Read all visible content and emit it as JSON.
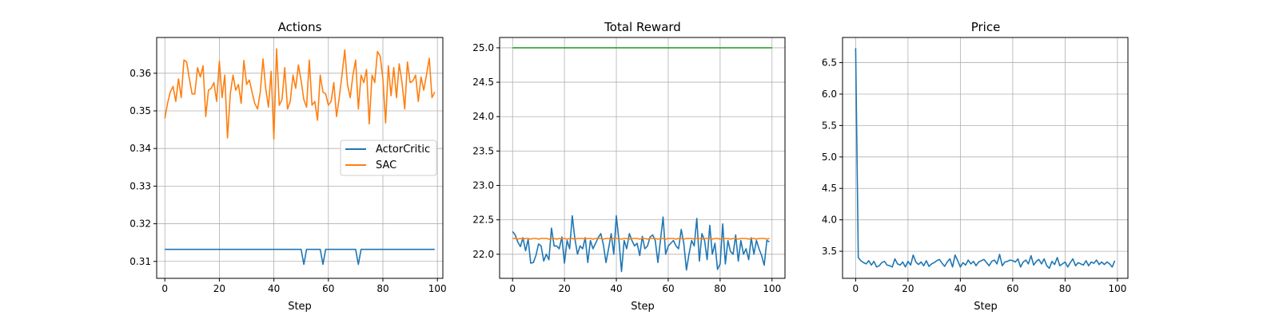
{
  "colors": {
    "c0": "#1f77b4",
    "c1": "#ff7f0e",
    "c2": "#2ca02c"
  },
  "chart_data": [
    {
      "type": "line",
      "title": "Actions",
      "xlabel": "Step",
      "ylabel": "",
      "xlim": [
        -3,
        102
      ],
      "ylim": [
        0.3055,
        0.3695
      ],
      "xticks": [
        0,
        20,
        40,
        60,
        80,
        100
      ],
      "yticks": [
        0.31,
        0.32,
        0.33,
        0.34,
        0.35,
        0.36
      ],
      "ytick_labels": [
        "0.31",
        "0.32",
        "0.33",
        "0.34",
        "0.35",
        "0.36"
      ],
      "grid": true,
      "legend": "center-right",
      "series": [
        {
          "name": "ActorCritic",
          "color": "#1f77b4",
          "values": [
            0.3132,
            0.3132,
            0.3132,
            0.3132,
            0.3132,
            0.3132,
            0.3132,
            0.3132,
            0.3132,
            0.3132,
            0.3132,
            0.3132,
            0.3132,
            0.3132,
            0.3132,
            0.3132,
            0.3132,
            0.3132,
            0.3132,
            0.3132,
            0.3132,
            0.3132,
            0.3132,
            0.3132,
            0.3132,
            0.3132,
            0.3132,
            0.3132,
            0.3132,
            0.3132,
            0.3132,
            0.3132,
            0.3132,
            0.3132,
            0.3132,
            0.3132,
            0.3132,
            0.3132,
            0.3132,
            0.3132,
            0.3132,
            0.3132,
            0.3132,
            0.3132,
            0.3132,
            0.3132,
            0.3132,
            0.3132,
            0.3132,
            0.3132,
            0.3132,
            0.3092,
            0.3132,
            0.3132,
            0.3132,
            0.3132,
            0.3132,
            0.3132,
            0.3092,
            0.3132,
            0.3132,
            0.3132,
            0.3132,
            0.3132,
            0.3132,
            0.3132,
            0.3132,
            0.3132,
            0.3132,
            0.3132,
            0.3132,
            0.3092,
            0.3132,
            0.3132,
            0.3132,
            0.3132,
            0.3132,
            0.3132,
            0.3132,
            0.3132,
            0.3132,
            0.3132,
            0.3132,
            0.3132,
            0.3132,
            0.3132,
            0.3132,
            0.3132,
            0.3132,
            0.3132,
            0.3132,
            0.3132,
            0.3132,
            0.3132,
            0.3132,
            0.3132,
            0.3132,
            0.3132,
            0.3132,
            0.3132
          ]
        },
        {
          "name": "SAC",
          "color": "#ff7f0e",
          "values": [
            0.348,
            0.352,
            0.355,
            0.3565,
            0.3525,
            0.3585,
            0.3535,
            0.3635,
            0.363,
            0.3585,
            0.3545,
            0.3545,
            0.3615,
            0.359,
            0.362,
            0.3485,
            0.3555,
            0.356,
            0.3575,
            0.3525,
            0.3632,
            0.3535,
            0.3595,
            0.3428,
            0.3545,
            0.3595,
            0.3555,
            0.357,
            0.352,
            0.3634,
            0.357,
            0.3582,
            0.355,
            0.352,
            0.3505,
            0.355,
            0.3638,
            0.356,
            0.351,
            0.3605,
            0.3425,
            0.3665,
            0.3515,
            0.353,
            0.3615,
            0.3505,
            0.3525,
            0.3595,
            0.356,
            0.3622,
            0.358,
            0.353,
            0.351,
            0.3635,
            0.3515,
            0.3525,
            0.3475,
            0.3595,
            0.355,
            0.3545,
            0.3515,
            0.3525,
            0.3575,
            0.3485,
            0.3535,
            0.3595,
            0.3662,
            0.357,
            0.3535,
            0.3595,
            0.3635,
            0.3505,
            0.3595,
            0.3575,
            0.361,
            0.3465,
            0.3595,
            0.3575,
            0.3658,
            0.3645,
            0.3585,
            0.3468,
            0.362,
            0.354,
            0.3615,
            0.3535,
            0.3625,
            0.3575,
            0.3505,
            0.363,
            0.3575,
            0.358,
            0.3595,
            0.3525,
            0.359,
            0.3555,
            0.3595,
            0.364,
            0.3535,
            0.355
          ]
        }
      ]
    },
    {
      "type": "line",
      "title": "Total Reward",
      "xlabel": "Step",
      "ylabel": "",
      "xlim": [
        -5,
        105
      ],
      "ylim": [
        21.65,
        25.15
      ],
      "xticks": [
        0,
        20,
        40,
        60,
        80,
        100
      ],
      "yticks": [
        22.0,
        22.5,
        23.0,
        23.5,
        24.0,
        24.5,
        25.0
      ],
      "ytick_labels": [
        "22.0",
        "22.5",
        "23.0",
        "23.5",
        "24.0",
        "24.5",
        "25.0"
      ],
      "grid": true,
      "series": [
        {
          "color": "#2ca02c",
          "x": [
            0,
            100
          ],
          "values": [
            25.0,
            25.0
          ]
        },
        {
          "color": "#1f77b4",
          "values": [
            22.33,
            22.28,
            22.18,
            22.11,
            22.24,
            22.05,
            22.22,
            21.87,
            21.88,
            21.98,
            22.15,
            22.12,
            21.9,
            22.0,
            21.92,
            22.38,
            22.12,
            22.12,
            22.08,
            22.25,
            21.87,
            22.2,
            22.08,
            22.56,
            22.23,
            22.0,
            22.12,
            22.08,
            22.24,
            21.88,
            22.2,
            22.08,
            22.16,
            22.24,
            22.3,
            22.14,
            21.88,
            22.08,
            22.3,
            22.0,
            22.56,
            22.2,
            21.75,
            22.2,
            22.08,
            22.3,
            22.2,
            22.12,
            22.16,
            21.98,
            22.26,
            22.08,
            22.12,
            22.25,
            22.28,
            22.2,
            21.88,
            22.2,
            22.54,
            22.0,
            22.12,
            22.16,
            22.2,
            22.12,
            22.08,
            22.36,
            22.16,
            21.77,
            22.0,
            22.2,
            22.12,
            22.52,
            21.9,
            22.3,
            22.2,
            21.92,
            22.42,
            22.0,
            22.16,
            21.78,
            21.86,
            22.44,
            21.86,
            22.2,
            22.04,
            22.0,
            22.28,
            21.9,
            22.2,
            22.0,
            22.08,
            21.92,
            22.24,
            22.0,
            22.2,
            22.08,
            21.98,
            21.84,
            22.2,
            22.18
          ]
        },
        {
          "color": "#ff7f0e",
          "values": [
            22.23,
            22.23,
            22.22,
            22.23,
            22.22,
            22.23,
            22.23,
            22.22,
            22.23,
            22.23,
            22.22,
            22.23,
            22.23,
            22.23,
            22.22,
            22.23,
            22.23,
            22.22,
            22.23,
            22.23,
            22.23,
            22.22,
            22.23,
            22.23,
            22.22,
            22.23,
            22.23,
            22.23,
            22.22,
            22.23,
            22.23,
            22.22,
            22.23,
            22.23,
            22.23,
            22.22,
            22.23,
            22.23,
            22.22,
            22.23,
            22.23,
            22.23,
            22.22,
            22.23,
            22.23,
            22.22,
            22.23,
            22.23,
            22.23,
            22.22,
            22.23,
            22.23,
            22.22,
            22.23,
            22.23,
            22.23,
            22.22,
            22.23,
            22.23,
            22.22,
            22.23,
            22.23,
            22.23,
            22.22,
            22.23,
            22.23,
            22.22,
            22.23,
            22.23,
            22.23,
            22.22,
            22.23,
            22.23,
            22.22,
            22.23,
            22.23,
            22.23,
            22.22,
            22.23,
            22.23,
            22.22,
            22.23,
            22.23,
            22.23,
            22.22,
            22.23,
            22.23,
            22.22,
            22.23,
            22.23,
            22.23,
            22.22,
            22.23,
            22.23,
            22.22,
            22.23,
            22.23,
            22.23,
            22.22,
            22.23
          ]
        }
      ]
    },
    {
      "type": "line",
      "title": "Price",
      "xlabel": "Step",
      "ylabel": "",
      "xlim": [
        -5,
        104
      ],
      "ylim": [
        3.07,
        6.9
      ],
      "xticks": [
        0,
        20,
        40,
        60,
        80,
        100
      ],
      "yticks": [
        3.5,
        4.0,
        4.5,
        5.0,
        5.5,
        6.0,
        6.5
      ],
      "ytick_labels": [
        "3.5",
        "4.0",
        "4.5",
        "5.0",
        "5.5",
        "6.0",
        "6.5"
      ],
      "grid": true,
      "series": [
        {
          "color": "#1f77b4",
          "values": [
            6.73,
            3.4,
            3.35,
            3.32,
            3.3,
            3.35,
            3.28,
            3.34,
            3.25,
            3.27,
            3.32,
            3.34,
            3.28,
            3.27,
            3.25,
            3.38,
            3.3,
            3.28,
            3.33,
            3.25,
            3.34,
            3.28,
            3.44,
            3.33,
            3.29,
            3.33,
            3.27,
            3.35,
            3.26,
            3.3,
            3.32,
            3.35,
            3.37,
            3.31,
            3.26,
            3.33,
            3.38,
            3.25,
            3.44,
            3.35,
            3.25,
            3.32,
            3.28,
            3.36,
            3.3,
            3.34,
            3.27,
            3.33,
            3.35,
            3.37,
            3.32,
            3.27,
            3.34,
            3.36,
            3.3,
            3.45,
            3.27,
            3.33,
            3.34,
            3.36,
            3.35,
            3.33,
            3.38,
            3.25,
            3.33,
            3.36,
            3.3,
            3.43,
            3.28,
            3.34,
            3.37,
            3.3,
            3.38,
            3.27,
            3.23,
            3.34,
            3.29,
            3.4,
            3.27,
            3.3,
            3.33,
            3.25,
            3.32,
            3.38,
            3.27,
            3.32,
            3.3,
            3.28,
            3.35,
            3.27,
            3.33,
            3.31,
            3.36,
            3.29,
            3.33,
            3.29,
            3.33,
            3.3,
            3.25,
            3.35
          ]
        }
      ]
    }
  ]
}
